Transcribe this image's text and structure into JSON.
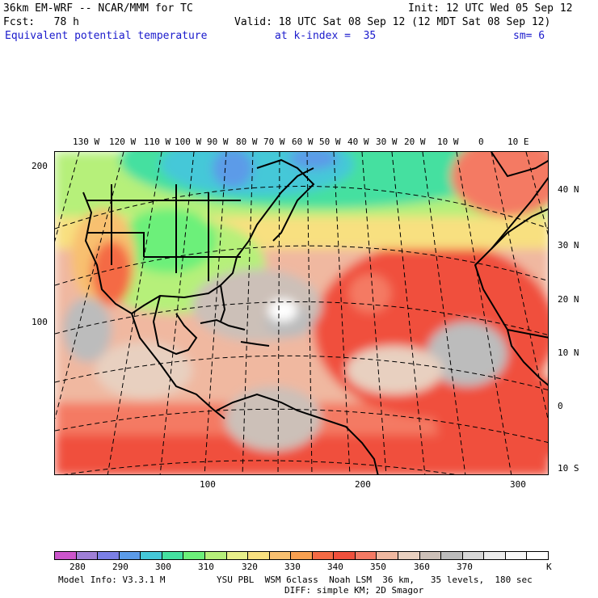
{
  "header": {
    "line1_left": "36km EM-WRF -- NCAR/MMM for TC",
    "line1_right": "Init: 12 UTC Wed 05 Sep 12",
    "line2_left": "Fcst:   78 h",
    "line2_right": "Valid: 18 UTC Sat 08 Sep 12 (12 MDT Sat 08 Sep 12)",
    "field_name": "Equivalent potential temperature",
    "level": "at k-index =  35",
    "smoothing": "sm= 6"
  },
  "map": {
    "longitude_labels": [
      "130 W",
      "120 W",
      "110 W",
      "100 W",
      "90 W",
      "80 W",
      "70 W",
      "60 W",
      "50 W",
      "40 W",
      "30 W",
      "20 W",
      "10 W",
      "0",
      "10 E"
    ],
    "latitude_labels": [
      "40 N",
      "30 N",
      "20 N",
      "10 N",
      "0",
      "10 S"
    ],
    "y_grid_labels": [
      "200",
      "100"
    ],
    "x_grid_labels": [
      "100",
      "200",
      "300"
    ]
  },
  "colorbar": {
    "unit": "K",
    "tick_labels": [
      "280",
      "290",
      "300",
      "310",
      "320",
      "330",
      "340",
      "350",
      "360",
      "370"
    ],
    "colors": [
      "#cc55cc",
      "#9f7fd6",
      "#7b7fe6",
      "#5b9be8",
      "#45c8d8",
      "#44e0a0",
      "#6cf07a",
      "#b6f07a",
      "#e8f08a",
      "#f8e080",
      "#f8c070",
      "#f8a050",
      "#f46a44",
      "#f0503c",
      "#f47a64",
      "#f0b8a0",
      "#e8d0c0",
      "#ccc0b8",
      "#bcbcbc",
      "#d8d8d8",
      "#ececec",
      "#f8f8f8",
      "#ffffff"
    ]
  },
  "footer": {
    "model_info": "Model Info: V3.3.1 M",
    "physics": "YSU PBL  WSM 6class  Noah LSM  36 km,   35 levels,  180 sec",
    "diffusion": "DIFF: simple KM; 2D Smagor"
  }
}
